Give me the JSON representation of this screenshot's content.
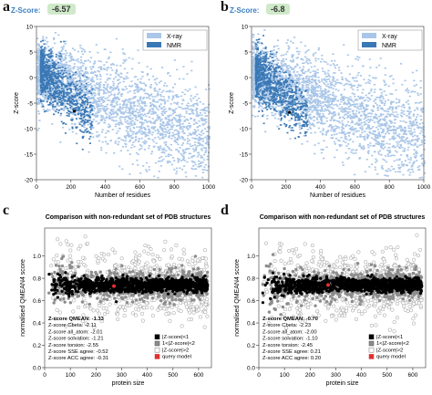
{
  "panels": [
    {
      "letter": "a",
      "zscore_label": "Z-Score:",
      "zscore_value": "-6.57"
    },
    {
      "letter": "b",
      "zscore_label": "Z-Score:",
      "zscore_value": "-6.8"
    },
    {
      "letter": "c"
    },
    {
      "letter": "d"
    }
  ],
  "chart_data": [
    {
      "type": "scatter",
      "panel": "a",
      "xlabel": "Number of residues",
      "ylabel": "Z-score",
      "xlim": [
        0,
        1000
      ],
      "ylim": [
        -20,
        10
      ],
      "xticks": [
        "0",
        "200",
        "400",
        "600",
        "800",
        "1000"
      ],
      "yticks": [
        "10",
        "5",
        "0",
        "-5",
        "-10",
        "-15",
        "-20"
      ],
      "legend": {
        "position": "top-right",
        "entries": [
          "X-ray",
          "NMR"
        ]
      },
      "series": [
        {
          "name": "X-ray",
          "color": "#a9c6e8",
          "distribution": "density band from z about 2 at small sizes to about -15 near 1000 residues"
        },
        {
          "name": "NMR",
          "color": "#3a78b5",
          "distribution": "dense band concentrated below 300 residues, z between about 5 and -10"
        }
      ],
      "query_model": {
        "x": 220,
        "y": -6.57,
        "marker": "black dot"
      }
    },
    {
      "type": "scatter",
      "panel": "b",
      "xlabel": "Number of residues",
      "ylabel": "Z-score",
      "xlim": [
        0,
        1000
      ],
      "ylim": [
        -20,
        10
      ],
      "xticks": [
        "0",
        "200",
        "400",
        "600",
        "800",
        "1000"
      ],
      "yticks": [
        "10",
        "5",
        "0",
        "-5",
        "-10",
        "-15",
        "-20"
      ],
      "legend": {
        "position": "top-right",
        "entries": [
          "X-ray",
          "NMR"
        ]
      },
      "series": [
        {
          "name": "X-ray",
          "color": "#a9c6e8"
        },
        {
          "name": "NMR",
          "color": "#3a78b5"
        }
      ],
      "query_model": {
        "x": 220,
        "y": -6.8,
        "marker": "black dot"
      }
    },
    {
      "type": "scatter",
      "panel": "c",
      "title": "Comparison with non-redundant set of PDB structures",
      "xlabel": "protein size",
      "ylabel": "normalised QMEAN4 score",
      "xlim": [
        0,
        650
      ],
      "ylim": [
        0,
        1.25
      ],
      "xticks": [
        "0",
        "100",
        "200",
        "300",
        "400",
        "500",
        "600"
      ],
      "yticks": [
        "0.0",
        "0.2",
        "0.4",
        "0.6",
        "0.8",
        "1.0"
      ],
      "bands": [
        {
          "name": "|Z-score|<1",
          "color": "#000000",
          "ymin": 0.63,
          "ymax": 0.85
        },
        {
          "name": "1<|Z-score|<2",
          "color": "#888888",
          "ymin": 0.52,
          "ymax": 0.95
        },
        {
          "name": "|Z-score|>2",
          "color": "#ffffff",
          "ymin": 0.35,
          "ymax": 1.12
        }
      ],
      "query_model": {
        "x": 270,
        "y": 0.73,
        "color": "#e03030"
      },
      "legend": {
        "position": "bottom-right",
        "entries": [
          "|Z-score|<1",
          "1<|Z-score|<2",
          "|Z-score|>2",
          "query model"
        ]
      },
      "stats": [
        "Z-score QMEAN: -1.33",
        "Z-score Cbeta: -2.11",
        "Z-score all_atom: -2.01",
        "Z-score solvation: -1.21",
        "Z-score torsion: -2.55",
        "Z-score SSE agree: -0.52",
        "Z-score ACC agree: -0.31"
      ]
    },
    {
      "type": "scatter",
      "panel": "d",
      "title": "Comparison with non-redundant set of PDB structures",
      "xlabel": "protein size",
      "ylabel": "normalised QMEAN4 score",
      "xlim": [
        0,
        650
      ],
      "ylim": [
        0,
        1.25
      ],
      "xticks": [
        "0",
        "100",
        "200",
        "300",
        "400",
        "500",
        "600"
      ],
      "yticks": [
        "0.0",
        "0.2",
        "0.4",
        "0.6",
        "0.8",
        "1.0"
      ],
      "bands": [
        {
          "name": "|Z-score|<1",
          "color": "#000000",
          "ymin": 0.63,
          "ymax": 0.85
        },
        {
          "name": "1<|Z-score|<2",
          "color": "#888888",
          "ymin": 0.52,
          "ymax": 0.95
        },
        {
          "name": "|Z-score|>2",
          "color": "#ffffff",
          "ymin": 0.35,
          "ymax": 1.12
        }
      ],
      "query_model": {
        "x": 270,
        "y": 0.74,
        "color": "#e03030"
      },
      "legend": {
        "position": "bottom-right",
        "entries": [
          "|Z-score|<1",
          "1<|Z-score|<2",
          "|Z-score|>2",
          "query model"
        ]
      },
      "stats": [
        "Z-score QMEAN: -0.70",
        "Z-score Cbeta: -2.23",
        "Z-score all_atom: -2.00",
        "Z-score solvation: -1.10",
        "Z-score torsion: -2.45",
        "Z-score SSE agree: 0.21",
        "Z-score ACC agree: 0.20"
      ]
    }
  ]
}
